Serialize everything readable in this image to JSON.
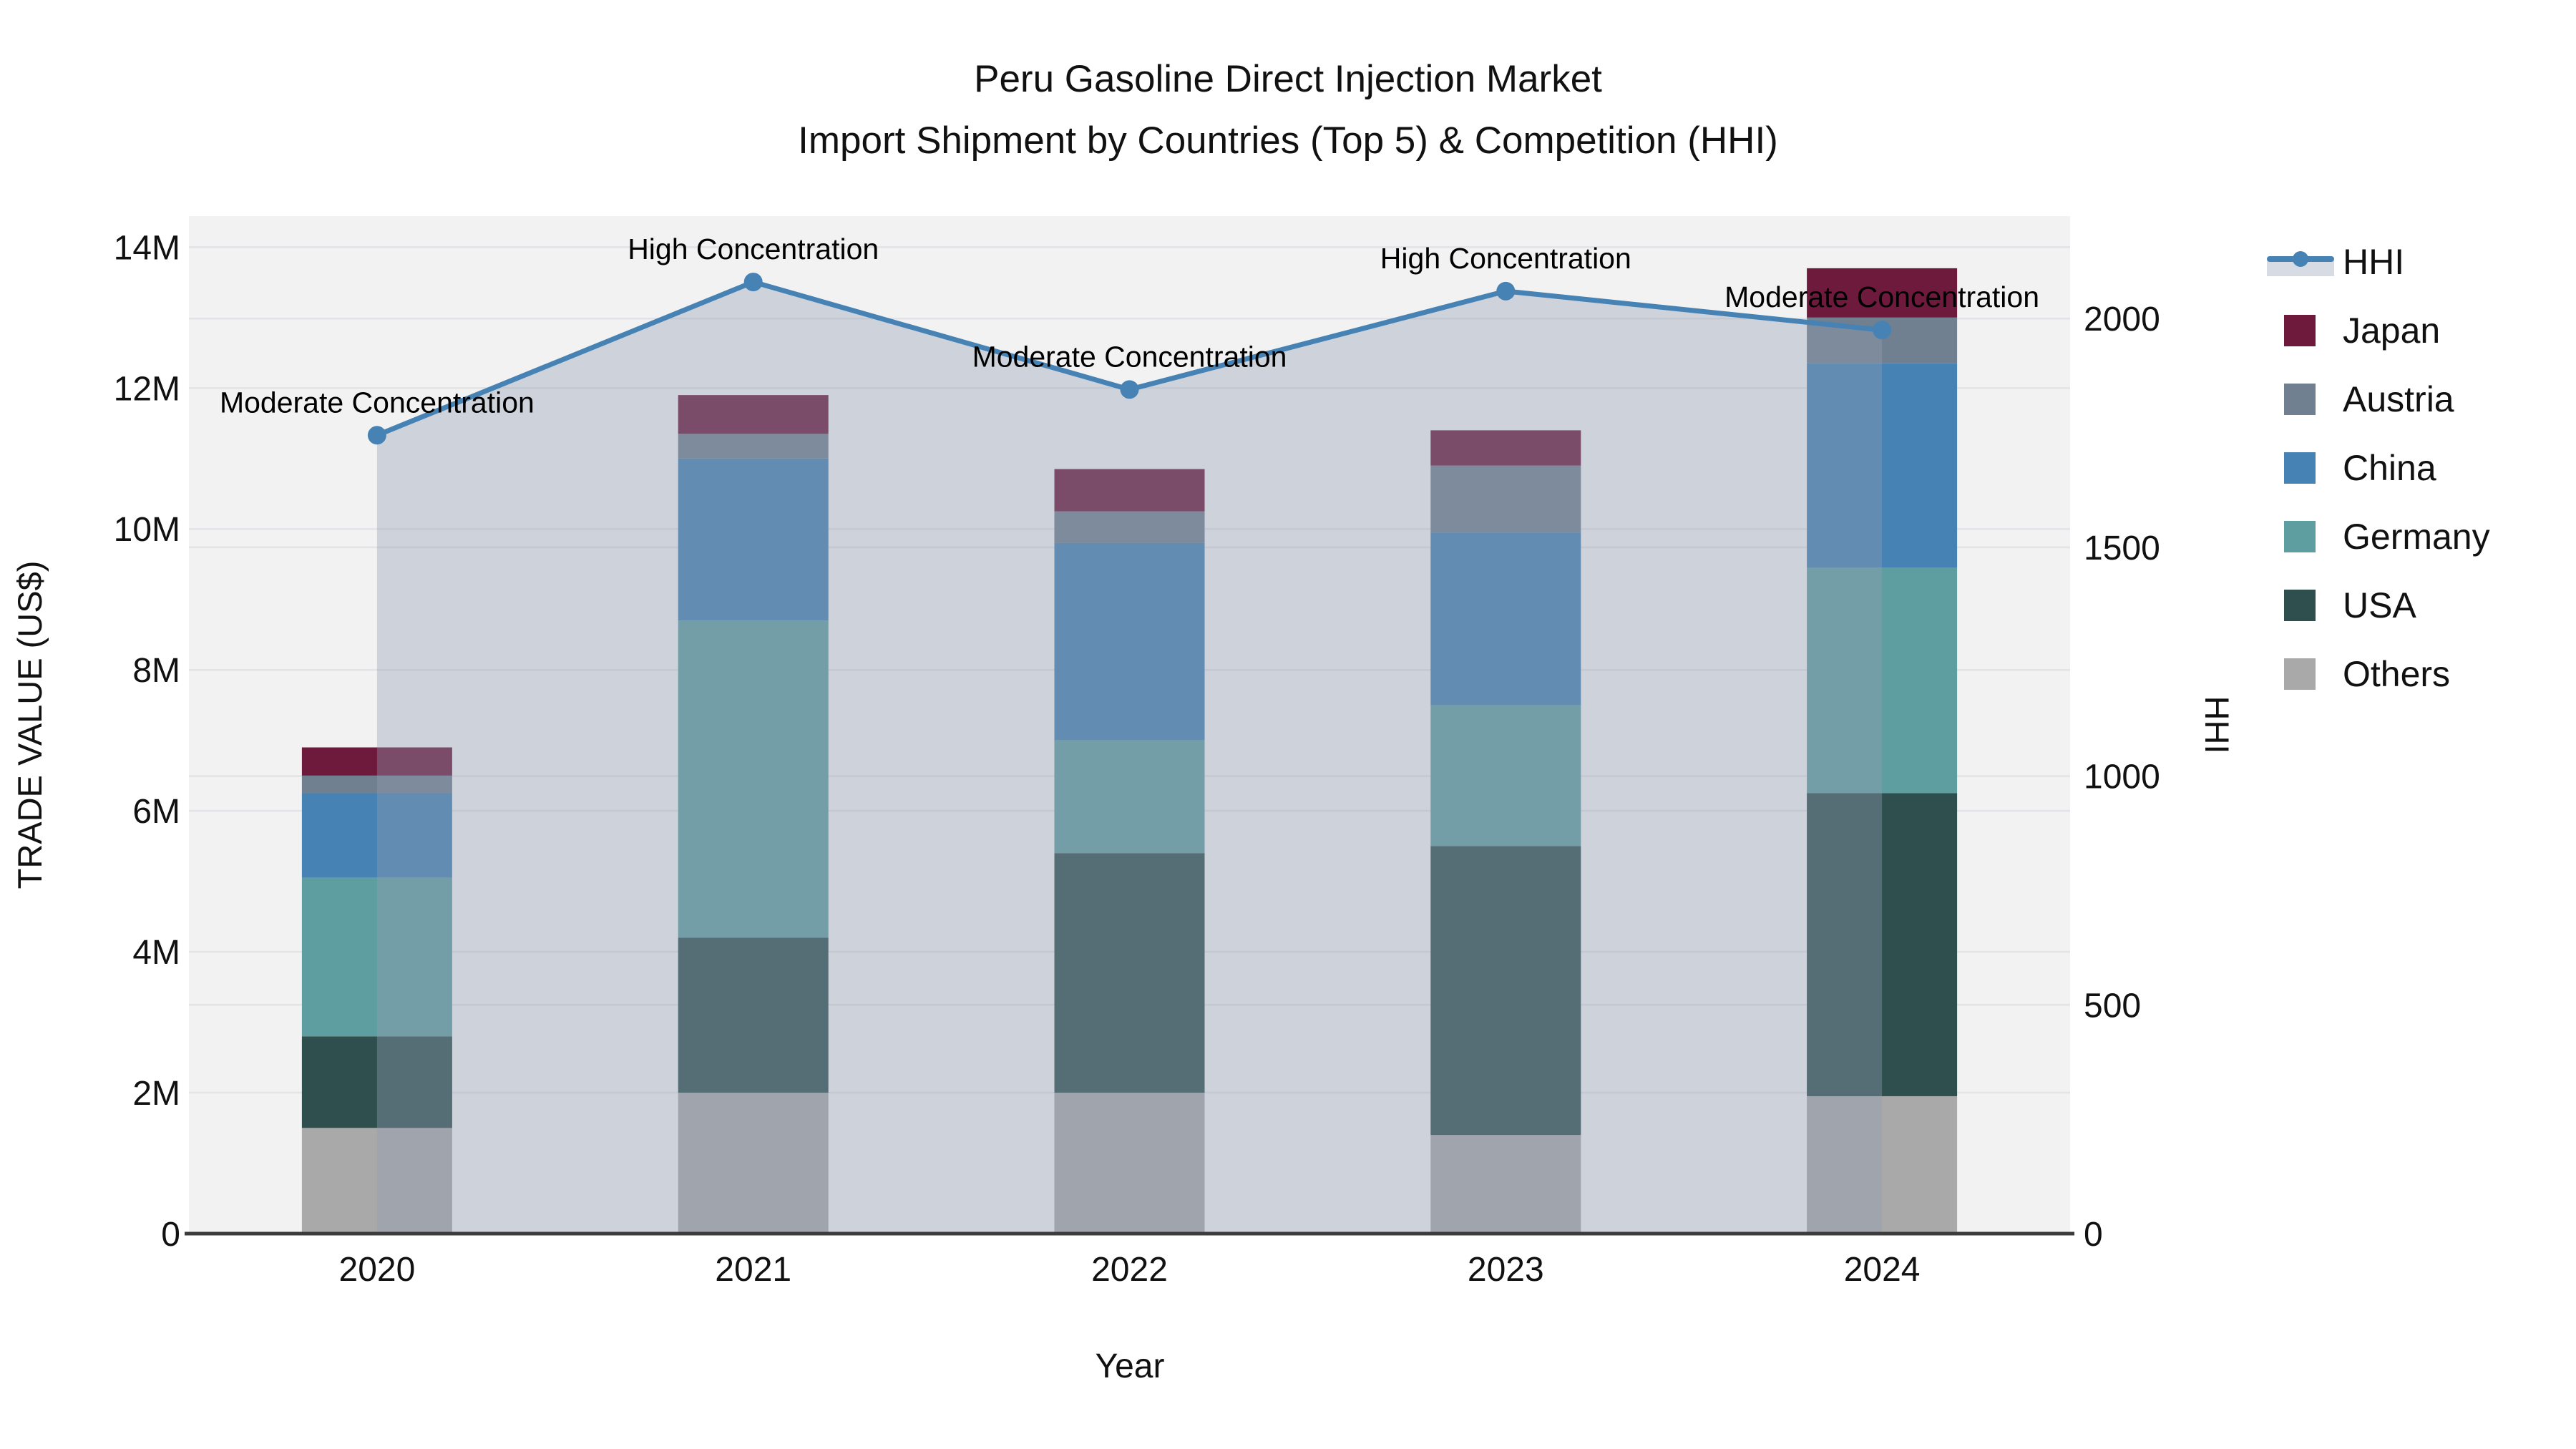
{
  "chart_data": {
    "type": "bar+line",
    "title": "Peru Gasoline Direct Injection Market",
    "subtitle": "Import Shipment by Countries (Top 5) & Competition (HHI)",
    "xlabel": "Year",
    "ylabel_left": "TRADE VALUE (US$)",
    "ylabel_right": "HHI",
    "categories": [
      "2020",
      "2021",
      "2022",
      "2023",
      "2024"
    ],
    "bar_unit": "million US$",
    "bar_stack_bottom_to_top": [
      "Others",
      "USA",
      "Germany",
      "China",
      "Austria",
      "Japan"
    ],
    "series": [
      {
        "name": "Others",
        "color": "#A9A9A9",
        "values": [
          1.5,
          2.0,
          2.0,
          1.4,
          1.95
        ]
      },
      {
        "name": "USA",
        "color": "#2F4F4F",
        "values": [
          1.3,
          2.2,
          3.4,
          4.1,
          4.3
        ]
      },
      {
        "name": "Germany",
        "color": "#5F9EA0",
        "values": [
          2.25,
          4.5,
          1.6,
          2.0,
          3.2
        ]
      },
      {
        "name": "China",
        "color": "#4682B4",
        "values": [
          1.2,
          2.3,
          2.8,
          2.45,
          2.9
        ]
      },
      {
        "name": "Austria",
        "color": "#708090",
        "values": [
          0.25,
          0.35,
          0.45,
          0.95,
          0.65
        ]
      },
      {
        "name": "Japan",
        "color": "#6D1A3C",
        "values": [
          0.4,
          0.55,
          0.6,
          0.5,
          0.7
        ]
      }
    ],
    "hhi": {
      "name": "HHI",
      "color": "#4682B4",
      "area_fill": "rgba(146,158,178,0.38)",
      "values": [
        1745,
        2080,
        1845,
        2060,
        1975
      ]
    },
    "annotations": [
      "Moderate Concentration",
      "High Concentration",
      "Moderate Concentration",
      "High Concentration",
      "Moderate Concentration"
    ],
    "y1_ticks": {
      "values": [
        0,
        2,
        4,
        6,
        8,
        10,
        12,
        14
      ],
      "labels": [
        "0",
        "2M",
        "4M",
        "6M",
        "8M",
        "10M",
        "12M",
        "14M"
      ]
    },
    "y1_max": 14.44,
    "y2_ticks": {
      "values": [
        0,
        500,
        1000,
        1500,
        2000
      ],
      "labels": [
        "0",
        "500",
        "1000",
        "1500",
        "2000"
      ]
    },
    "y2_max": 2224,
    "legend_order": [
      "HHI",
      "Japan",
      "Austria",
      "China",
      "Germany",
      "USA",
      "Others"
    ],
    "layout": {
      "grid": true,
      "legend_position": "right",
      "plot_bg": "#F2F2F2",
      "grid_color": "#E2E3E6",
      "axis_line_color": "#3B3B3B"
    }
  }
}
